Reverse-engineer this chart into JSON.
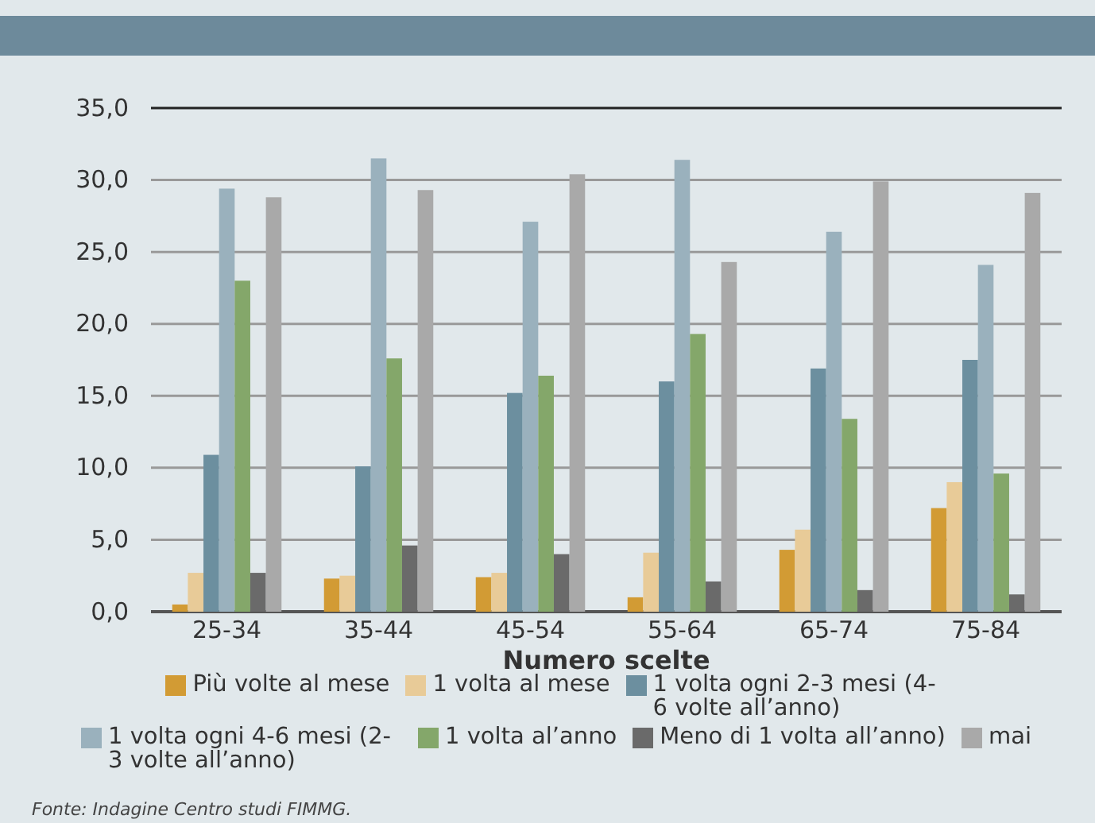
{
  "chart_data": {
    "type": "bar",
    "xlabel": "Numero scelte",
    "categories": [
      "25-34",
      "35-44",
      "45-54",
      "55-64",
      "65-74",
      "75-84"
    ],
    "series": [
      {
        "name": "Più volte al mese",
        "color": "#d29b34",
        "values": [
          0.5,
          2.3,
          2.4,
          1.0,
          4.3,
          7.2
        ]
      },
      {
        "name": "1 volta al mese",
        "color": "#e8cb98",
        "values": [
          2.7,
          2.5,
          2.7,
          4.1,
          5.7,
          9.0
        ]
      },
      {
        "name": "1 volta ogni 2-3 mesi (4-6 volte all’anno)",
        "color": "#6c8f9f",
        "values": [
          10.9,
          10.1,
          15.2,
          16.0,
          16.9,
          17.5
        ]
      },
      {
        "name": "1 volta ogni 4-6 mesi (2-3 volte all’anno)",
        "color": "#9ab1bd",
        "values": [
          29.4,
          31.5,
          27.1,
          31.4,
          26.4,
          24.1
        ]
      },
      {
        "name": "1 volta al’anno",
        "color": "#84a76a",
        "values": [
          23.0,
          17.6,
          16.4,
          19.3,
          13.4,
          9.6
        ]
      },
      {
        "name": "Meno di 1 volta all’anno)",
        "color": "#6a6a6a",
        "values": [
          2.7,
          4.6,
          4.0,
          2.1,
          1.5,
          1.2
        ]
      },
      {
        "name": "mai",
        "color": "#a9a9a9",
        "values": [
          28.8,
          29.3,
          30.4,
          24.3,
          29.9,
          29.1
        ]
      }
    ],
    "ylim": [
      0,
      35
    ],
    "yticks": [
      {
        "value": 0,
        "label": "0,0"
      },
      {
        "value": 5,
        "label": "5,0"
      },
      {
        "value": 10,
        "label": "10,0"
      },
      {
        "value": 15,
        "label": "15,0"
      },
      {
        "value": 20,
        "label": "20,0"
      },
      {
        "value": 25,
        "label": "25,0"
      },
      {
        "value": 30,
        "label": "30,0"
      },
      {
        "value": 35,
        "label": "35,0"
      }
    ],
    "grid": "y",
    "legend": "bottom",
    "annotations": [
      "Fonte: Indagine Centro studi FIMMG."
    ]
  }
}
